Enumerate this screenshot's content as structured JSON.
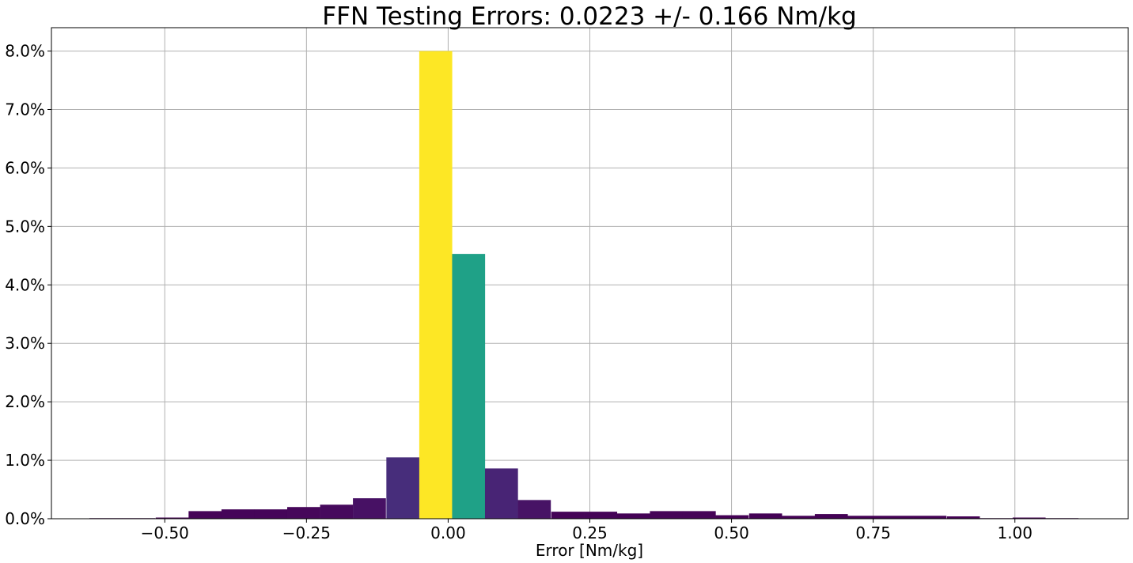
{
  "chart_data": {
    "type": "bar",
    "title": "FFN Testing Errors: 0.0223 +/- 0.166 Nm/kg",
    "xlabel": "Error [Nm/kg]",
    "ylabel": "",
    "xlim": [
      -0.7,
      1.2
    ],
    "ylim": [
      0,
      0.084
    ],
    "x_ticks": [
      -0.5,
      -0.25,
      0.0,
      0.25,
      0.5,
      0.75,
      1.0
    ],
    "x_tick_labels": [
      "−0.50",
      "−0.25",
      "0.00",
      "0.25",
      "0.50",
      "0.75",
      "1.00"
    ],
    "y_ticks": [
      0,
      0.01,
      0.02,
      0.03,
      0.04,
      0.05,
      0.06,
      0.07,
      0.08
    ],
    "y_tick_labels": [
      "0.0%",
      "1.0%",
      "2.0%",
      "3.0%",
      "4.0%",
      "5.0%",
      "6.0%",
      "7.0%",
      "8.0%"
    ],
    "grid": true,
    "legend": "none",
    "colormap": "viridis",
    "bin_left_edges": [
      -0.633,
      -0.575,
      -0.516,
      -0.458,
      -0.4,
      -0.342,
      -0.284,
      -0.226,
      -0.168,
      -0.109,
      -0.051,
      0.007,
      0.065,
      0.123,
      0.182,
      0.24,
      0.298,
      0.356,
      0.414,
      0.472,
      0.531,
      0.589,
      0.647,
      0.705,
      0.763,
      0.821,
      0.88,
      0.938,
      0.996,
      1.054
    ],
    "bin_width": 0.0582,
    "values": [
      0.0001,
      0.0001,
      0.0002,
      0.0013,
      0.0016,
      0.0016,
      0.002,
      0.0024,
      0.0035,
      0.0105,
      0.08,
      0.0453,
      0.0086,
      0.0032,
      0.0012,
      0.0012,
      0.0009,
      0.0013,
      0.0013,
      0.0006,
      0.0009,
      0.0005,
      0.0008,
      0.0005,
      0.0005,
      0.0005,
      0.0004,
      0.0001,
      0.0002,
      0.0001
    ],
    "bar_colors": [
      "#440154",
      "#440154",
      "#440154",
      "#450457",
      "#450559",
      "#450559",
      "#46075a",
      "#460a5d",
      "#471164",
      "#472d7b",
      "#fde725",
      "#1fa187",
      "#482475",
      "#471365",
      "#450457",
      "#450457",
      "#440255",
      "#450457",
      "#450457",
      "#440154",
      "#440255",
      "#440154",
      "#440255",
      "#440154",
      "#440154",
      "#440154",
      "#440154",
      "#440154",
      "#440154",
      "#440154"
    ]
  }
}
